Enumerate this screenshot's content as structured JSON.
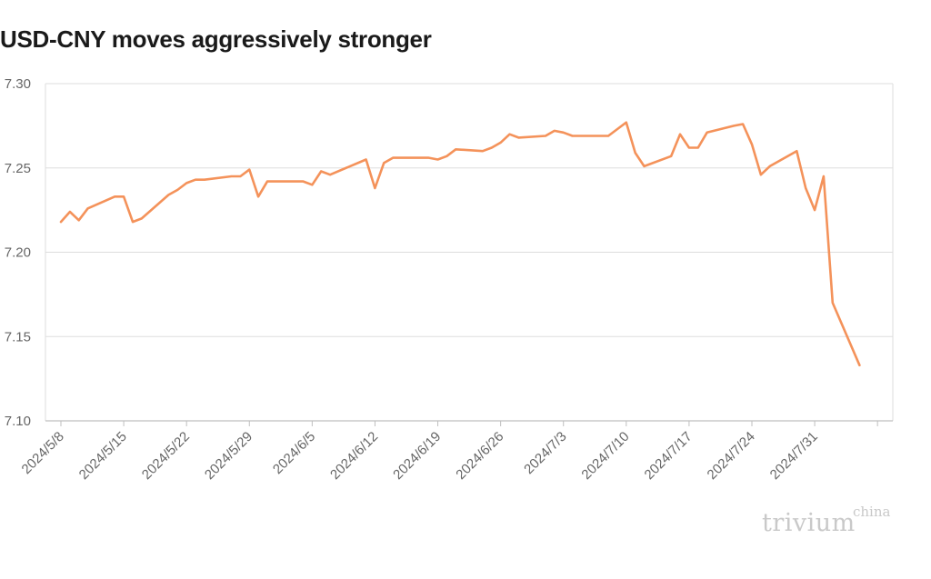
{
  "title": "USD-CNY moves aggressively stronger",
  "logo": {
    "word": "trivium",
    "sup": "china"
  },
  "colors": {
    "line": "#f4925a",
    "grid": "#dddddd",
    "axis": "#bfbfbf",
    "text": "#666666"
  },
  "chart_data": {
    "type": "line",
    "title": "USD-CNY moves aggressively stronger",
    "xlabel": "",
    "ylabel": "",
    "ylim": [
      7.1,
      7.3
    ],
    "yticks": [
      "7.10",
      "7.15",
      "7.20",
      "7.25",
      "7.30"
    ],
    "xticks": [
      "2024/5/8",
      "2024/5/15",
      "2024/5/22",
      "2024/5/29",
      "2024/6/5",
      "2024/6/12",
      "2024/6/19",
      "2024/6/26",
      "2024/7/3",
      "2024/7/10",
      "2024/7/17",
      "2024/7/24",
      "2024/7/31"
    ],
    "grid": true,
    "legend": "none",
    "series": [
      {
        "x": [
          "2024/5/8",
          "2024/5/9",
          "2024/5/10",
          "2024/5/11",
          "2024/5/14",
          "2024/5/15",
          "2024/5/16",
          "2024/5/17",
          "2024/5/20",
          "2024/5/21",
          "2024/5/22",
          "2024/5/23",
          "2024/5/24",
          "2024/5/27",
          "2024/5/28",
          "2024/5/29",
          "2024/5/30",
          "2024/5/31",
          "2024/6/3",
          "2024/6/4",
          "2024/6/5",
          "2024/6/6",
          "2024/6/7",
          "2024/6/11",
          "2024/6/12",
          "2024/6/13",
          "2024/6/14",
          "2024/6/17",
          "2024/6/18",
          "2024/6/19",
          "2024/6/20",
          "2024/6/21",
          "2024/6/24",
          "2024/6/25",
          "2024/6/26",
          "2024/6/27",
          "2024/6/28",
          "2024/7/1",
          "2024/7/2",
          "2024/7/3",
          "2024/7/4",
          "2024/7/5",
          "2024/7/8",
          "2024/7/9",
          "2024/7/10",
          "2024/7/11",
          "2024/7/12",
          "2024/7/15",
          "2024/7/16",
          "2024/7/17",
          "2024/7/18",
          "2024/7/19",
          "2024/7/22",
          "2024/7/23",
          "2024/7/24",
          "2024/7/25",
          "2024/7/26",
          "2024/7/29",
          "2024/7/30",
          "2024/7/31",
          "2024/8/1",
          "2024/8/2",
          "2024/8/5"
        ],
        "values": [
          7.218,
          7.224,
          7.219,
          7.226,
          7.233,
          7.233,
          7.218,
          7.22,
          7.234,
          7.237,
          7.241,
          7.243,
          7.243,
          7.245,
          7.245,
          7.249,
          7.233,
          7.242,
          7.242,
          7.242,
          7.24,
          7.248,
          7.246,
          7.255,
          7.238,
          7.253,
          7.256,
          7.256,
          7.256,
          7.255,
          7.257,
          7.261,
          7.26,
          7.262,
          7.265,
          7.27,
          7.268,
          7.269,
          7.272,
          7.271,
          7.269,
          7.269,
          7.269,
          7.273,
          7.277,
          7.259,
          7.251,
          7.257,
          7.27,
          7.262,
          7.262,
          7.271,
          7.275,
          7.276,
          7.264,
          7.246,
          7.251,
          7.26,
          7.238,
          7.225,
          7.245,
          7.17,
          7.133
        ]
      }
    ]
  }
}
